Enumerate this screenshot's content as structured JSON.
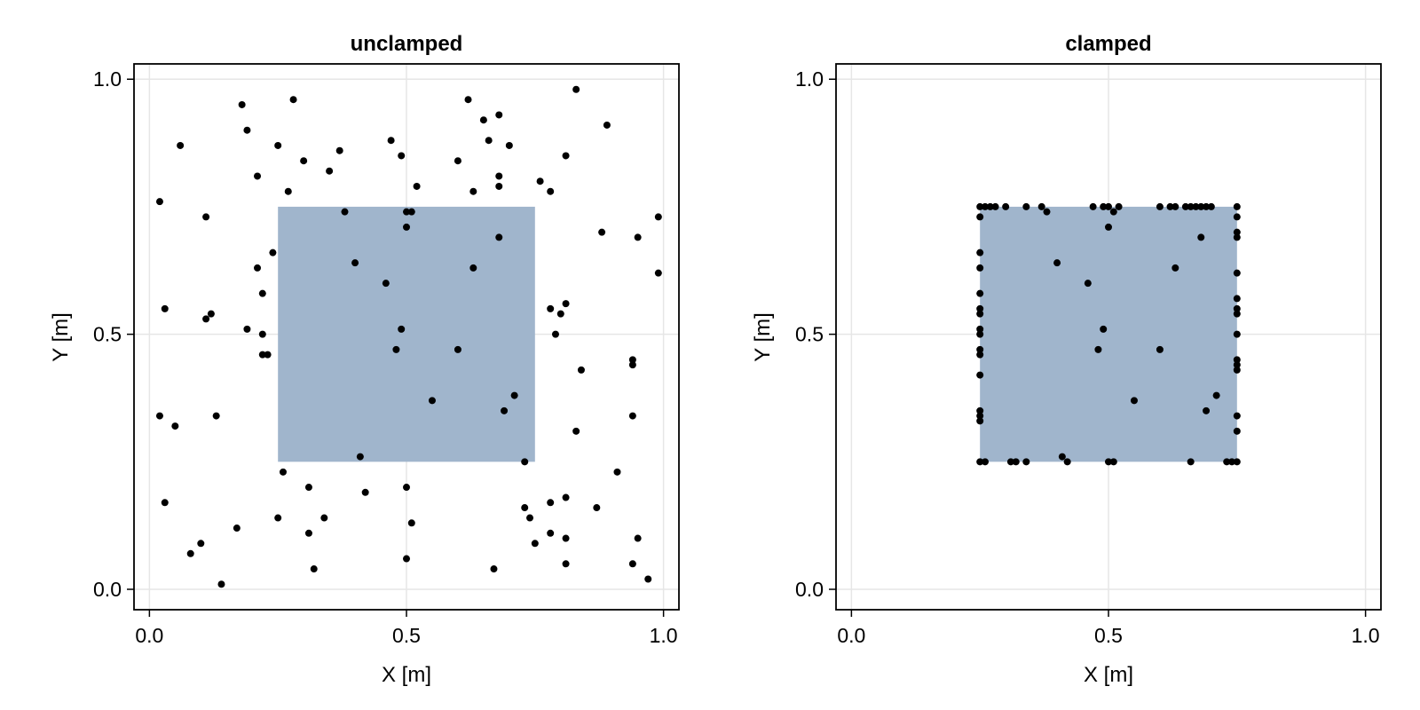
{
  "chart_data": [
    {
      "type": "scatter",
      "title": "unclamped",
      "xlabel": "X [m]",
      "ylabel": "Y [m]",
      "xlim": [
        -0.03,
        1.03
      ],
      "ylim": [
        -0.04,
        1.03
      ],
      "xticks": [
        0.0,
        0.5,
        1.0
      ],
      "yticks": [
        0.0,
        0.5,
        1.0
      ],
      "xtick_labels": [
        "0.0",
        "0.5",
        "1.0"
      ],
      "ytick_labels": [
        "0.0",
        "0.5",
        "1.0"
      ],
      "grid": true,
      "region": {
        "x": [
          0.25,
          0.75
        ],
        "y": [
          0.25,
          0.75
        ],
        "color": "#a0b5cc"
      },
      "point_color": "#000000",
      "points": [
        [
          0.02,
          0.76
        ],
        [
          0.03,
          0.55
        ],
        [
          0.06,
          0.87
        ],
        [
          0.02,
          0.34
        ],
        [
          0.05,
          0.32
        ],
        [
          0.03,
          0.17
        ],
        [
          0.11,
          0.73
        ],
        [
          0.11,
          0.53
        ],
        [
          0.12,
          0.54
        ],
        [
          0.08,
          0.07
        ],
        [
          0.1,
          0.09
        ],
        [
          0.13,
          0.34
        ],
        [
          0.14,
          0.01
        ],
        [
          0.17,
          0.12
        ],
        [
          0.18,
          0.95
        ],
        [
          0.19,
          0.9
        ],
        [
          0.19,
          0.51
        ],
        [
          0.21,
          0.81
        ],
        [
          0.21,
          0.63
        ],
        [
          0.22,
          0.58
        ],
        [
          0.22,
          0.5
        ],
        [
          0.22,
          0.46
        ],
        [
          0.23,
          0.46
        ],
        [
          0.24,
          0.66
        ],
        [
          0.25,
          0.87
        ],
        [
          0.25,
          0.14
        ],
        [
          0.26,
          0.23
        ],
        [
          0.27,
          0.78
        ],
        [
          0.28,
          0.96
        ],
        [
          0.3,
          0.84
        ],
        [
          0.31,
          0.2
        ],
        [
          0.31,
          0.11
        ],
        [
          0.32,
          0.04
        ],
        [
          0.34,
          0.14
        ],
        [
          0.35,
          0.82
        ],
        [
          0.37,
          0.86
        ],
        [
          0.38,
          0.74
        ],
        [
          0.4,
          0.64
        ],
        [
          0.41,
          0.26
        ],
        [
          0.42,
          0.19
        ],
        [
          0.46,
          0.6
        ],
        [
          0.47,
          0.88
        ],
        [
          0.48,
          0.47
        ],
        [
          0.49,
          0.51
        ],
        [
          0.49,
          0.85
        ],
        [
          0.5,
          0.74
        ],
        [
          0.51,
          0.74
        ],
        [
          0.5,
          0.71
        ],
        [
          0.5,
          0.2
        ],
        [
          0.51,
          0.13
        ],
        [
          0.5,
          0.06
        ],
        [
          0.52,
          0.79
        ],
        [
          0.55,
          0.37
        ],
        [
          0.6,
          0.84
        ],
        [
          0.6,
          0.47
        ],
        [
          0.62,
          0.96
        ],
        [
          0.63,
          0.78
        ],
        [
          0.63,
          0.63
        ],
        [
          0.65,
          0.92
        ],
        [
          0.66,
          0.88
        ],
        [
          0.67,
          0.04
        ],
        [
          0.68,
          0.93
        ],
        [
          0.68,
          0.81
        ],
        [
          0.68,
          0.79
        ],
        [
          0.68,
          0.69
        ],
        [
          0.69,
          0.35
        ],
        [
          0.7,
          0.87
        ],
        [
          0.71,
          0.38
        ],
        [
          0.73,
          0.25
        ],
        [
          0.73,
          0.16
        ],
        [
          0.74,
          0.14
        ],
        [
          0.75,
          0.09
        ],
        [
          0.76,
          0.8
        ],
        [
          0.78,
          0.78
        ],
        [
          0.78,
          0.55
        ],
        [
          0.79,
          0.5
        ],
        [
          0.78,
          0.17
        ],
        [
          0.78,
          0.11
        ],
        [
          0.8,
          0.54
        ],
        [
          0.81,
          0.56
        ],
        [
          0.81,
          0.85
        ],
        [
          0.81,
          0.18
        ],
        [
          0.81,
          0.1
        ],
        [
          0.81,
          0.05
        ],
        [
          0.83,
          0.98
        ],
        [
          0.83,
          0.31
        ],
        [
          0.84,
          0.43
        ],
        [
          0.87,
          0.16
        ],
        [
          0.88,
          0.7
        ],
        [
          0.89,
          0.91
        ],
        [
          0.91,
          0.23
        ],
        [
          0.94,
          0.34
        ],
        [
          0.94,
          0.45
        ],
        [
          0.94,
          0.44
        ],
        [
          0.94,
          0.05
        ],
        [
          0.95,
          0.69
        ],
        [
          0.95,
          0.1
        ],
        [
          0.97,
          0.02
        ],
        [
          0.99,
          0.73
        ],
        [
          0.99,
          0.62
        ]
      ]
    },
    {
      "type": "scatter",
      "title": "clamped",
      "xlabel": "X [m]",
      "ylabel": "Y [m]",
      "xlim": [
        -0.03,
        1.03
      ],
      "ylim": [
        -0.04,
        1.03
      ],
      "xticks": [
        0.0,
        0.5,
        1.0
      ],
      "yticks": [
        0.0,
        0.5,
        1.0
      ],
      "xtick_labels": [
        "0.0",
        "0.5",
        "1.0"
      ],
      "ytick_labels": [
        "0.0",
        "0.5",
        "1.0"
      ],
      "grid": true,
      "region": {
        "x": [
          0.25,
          0.75
        ],
        "y": [
          0.25,
          0.75
        ],
        "color": "#a0b5cc"
      },
      "point_color": "#000000",
      "points": [
        [
          0.25,
          0.75
        ],
        [
          0.26,
          0.75
        ],
        [
          0.27,
          0.75
        ],
        [
          0.28,
          0.75
        ],
        [
          0.3,
          0.75
        ],
        [
          0.34,
          0.75
        ],
        [
          0.37,
          0.75
        ],
        [
          0.38,
          0.74
        ],
        [
          0.47,
          0.75
        ],
        [
          0.49,
          0.75
        ],
        [
          0.5,
          0.75
        ],
        [
          0.51,
          0.74
        ],
        [
          0.52,
          0.75
        ],
        [
          0.6,
          0.75
        ],
        [
          0.62,
          0.75
        ],
        [
          0.63,
          0.75
        ],
        [
          0.65,
          0.75
        ],
        [
          0.66,
          0.75
        ],
        [
          0.67,
          0.75
        ],
        [
          0.68,
          0.75
        ],
        [
          0.69,
          0.75
        ],
        [
          0.7,
          0.75
        ],
        [
          0.75,
          0.75
        ],
        [
          0.25,
          0.73
        ],
        [
          0.25,
          0.66
        ],
        [
          0.25,
          0.63
        ],
        [
          0.25,
          0.58
        ],
        [
          0.25,
          0.55
        ],
        [
          0.25,
          0.54
        ],
        [
          0.25,
          0.51
        ],
        [
          0.25,
          0.5
        ],
        [
          0.25,
          0.47
        ],
        [
          0.25,
          0.46
        ],
        [
          0.25,
          0.42
        ],
        [
          0.25,
          0.35
        ],
        [
          0.25,
          0.34
        ],
        [
          0.25,
          0.33
        ],
        [
          0.75,
          0.73
        ],
        [
          0.75,
          0.7
        ],
        [
          0.75,
          0.69
        ],
        [
          0.75,
          0.62
        ],
        [
          0.75,
          0.57
        ],
        [
          0.75,
          0.55
        ],
        [
          0.75,
          0.54
        ],
        [
          0.75,
          0.5
        ],
        [
          0.75,
          0.45
        ],
        [
          0.75,
          0.44
        ],
        [
          0.75,
          0.43
        ],
        [
          0.75,
          0.34
        ],
        [
          0.75,
          0.31
        ],
        [
          0.75,
          0.25
        ],
        [
          0.25,
          0.25
        ],
        [
          0.26,
          0.25
        ],
        [
          0.31,
          0.25
        ],
        [
          0.32,
          0.25
        ],
        [
          0.34,
          0.25
        ],
        [
          0.41,
          0.26
        ],
        [
          0.42,
          0.25
        ],
        [
          0.5,
          0.25
        ],
        [
          0.51,
          0.25
        ],
        [
          0.66,
          0.25
        ],
        [
          0.73,
          0.25
        ],
        [
          0.74,
          0.25
        ],
        [
          0.4,
          0.64
        ],
        [
          0.46,
          0.6
        ],
        [
          0.48,
          0.47
        ],
        [
          0.49,
          0.51
        ],
        [
          0.5,
          0.71
        ],
        [
          0.55,
          0.37
        ],
        [
          0.6,
          0.47
        ],
        [
          0.63,
          0.63
        ],
        [
          0.68,
          0.69
        ],
        [
          0.69,
          0.35
        ],
        [
          0.71,
          0.38
        ]
      ]
    }
  ]
}
